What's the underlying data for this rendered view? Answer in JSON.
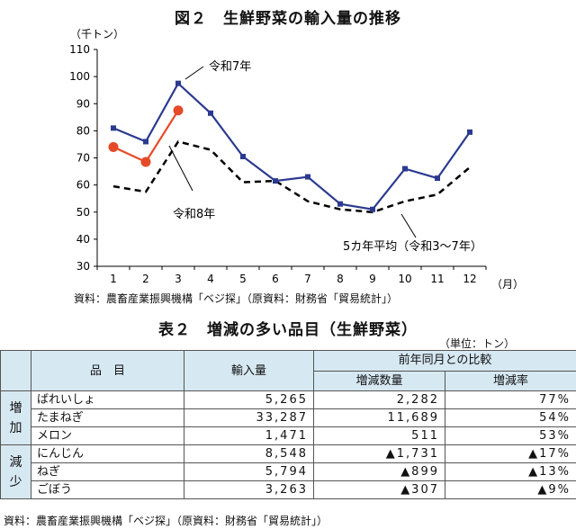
{
  "figure_title": "図２　生鮮野菜の輸入量の推移",
  "chart_data": {
    "type": "line",
    "ylabel": "（千トン）",
    "x_unit": "（月）",
    "x": [
      1,
      2,
      3,
      4,
      5,
      6,
      7,
      8,
      9,
      10,
      11,
      12
    ],
    "ylim": [
      30,
      110
    ],
    "yticks": [
      30,
      40,
      50,
      60,
      70,
      80,
      90,
      100,
      110
    ],
    "grid": false,
    "series": [
      {
        "name": "令和7年",
        "color": "#2b3a8f",
        "style": "solid-square-markers",
        "values": [
          81,
          76,
          97.5,
          86.5,
          70.5,
          61.5,
          63,
          53,
          51,
          66,
          62.5,
          79.5
        ]
      },
      {
        "name": "令和8年",
        "color": "#e64a28",
        "style": "solid-circle-markers",
        "values": [
          74,
          68.5,
          87.5,
          null,
          null,
          null,
          null,
          null,
          null,
          null,
          null,
          null
        ]
      },
      {
        "name": "5カ年平均（令和3〜7年）",
        "color": "#000000",
        "style": "dashed",
        "values": [
          59.5,
          57.5,
          76,
          73,
          61,
          61.5,
          54,
          51,
          50,
          54,
          56.5,
          66.5
        ]
      }
    ]
  },
  "source_chart": "資料：農畜産業振興機構「ベジ探」（原資料：財務省「貿易統計」）",
  "table_title": "表２　増減の多い品目（生鮮野菜）",
  "table_unit": "（単位：トン）",
  "table": {
    "headers": {
      "item": "品　目",
      "import": "輸入量",
      "compare": "前年同月との比較",
      "change_qty": "増減数量",
      "change_rate": "増減率"
    },
    "side_increase": [
      "増",
      "加"
    ],
    "side_decrease": [
      "減",
      "少"
    ],
    "rows": [
      {
        "name": "ばれいしょ",
        "import": "5,265",
        "qty": "2,282",
        "rate": "77%"
      },
      {
        "name": "たまねぎ",
        "import": "33,287",
        "qty": "11,689",
        "rate": "54%"
      },
      {
        "name": "メロン",
        "import": "1,471",
        "qty": "511",
        "rate": "53%"
      },
      {
        "name": "にんじん",
        "import": "8,548",
        "qty": "▲1,731",
        "rate": "▲17%"
      },
      {
        "name": "ねぎ",
        "import": "5,794",
        "qty": "▲899",
        "rate": "▲13%"
      },
      {
        "name": "ごぼう",
        "import": "3,263",
        "qty": "▲307",
        "rate": "▲9%"
      }
    ]
  },
  "source_table": "資料：農畜産業振興機構「ベジ探」（原資料：財務省「貿易統計」）"
}
